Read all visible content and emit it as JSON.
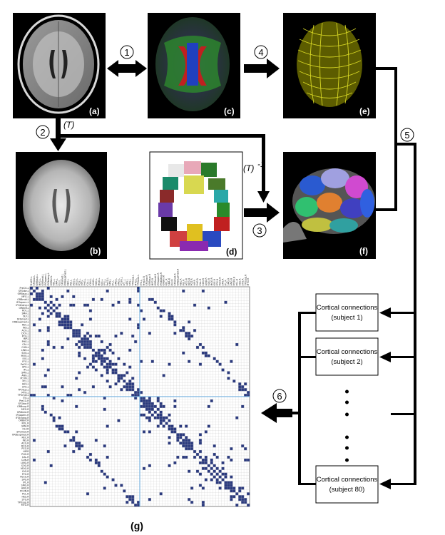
{
  "panels": {
    "a": {
      "label": "(a)"
    },
    "b": {
      "label": "(b)"
    },
    "c": {
      "label": "(c)"
    },
    "d": {
      "label": "(d)"
    },
    "e": {
      "label": "(e)"
    },
    "f": {
      "label": "(f)"
    },
    "g": {
      "label": "(g)"
    }
  },
  "steps": [
    "1",
    "2",
    "3",
    "4",
    "5",
    "6"
  ],
  "transforms": {
    "t": "(T)",
    "t_inv": "(T)",
    "t_inv_exp": "-1"
  },
  "subjects": [
    {
      "line1": "Cortical connections",
      "line2": "(subject 1)"
    },
    {
      "line1": "Cortical connections",
      "line2": "(subject 2)"
    },
    {
      "line1": "Cortical connections",
      "line2": "(subject 80)"
    }
  ],
  "regions": [
    "PreCG.L",
    "SFGdor.L",
    "ORBsup.L",
    "MFG.L",
    "ORBmid.L",
    "IFGoperc.L",
    "IFGtriang.L",
    "ORBinf.L",
    "ROL.L",
    "SMA.L",
    "OLF.L",
    "SFGmed.L",
    "ORBsupmed.L",
    "REC.L",
    "INS.L",
    "ACG.L",
    "DCG.L",
    "PCG.L",
    "HIP.L",
    "PHG.L",
    "CAL.L",
    "CUN.L",
    "LING.L",
    "SOG.L",
    "MOG.L",
    "IOG.L",
    "FFG.L",
    "PoCG.L",
    "SPG.L",
    "IPL.L",
    "SMG.L",
    "ANG.L",
    "PCUN.L",
    "PCL.L",
    "HES.L",
    "STG.L",
    "TPOsup.L",
    "MTG.L",
    "TPOmid.L",
    "ITG.L",
    "PreCG.R",
    "SFGdor.R",
    "ORBsup.R",
    "MFG.R",
    "ORBmid.R",
    "IFGoperc.R",
    "IFGtriang.R",
    "ORBinf.R",
    "ROL.R",
    "SMA.R",
    "OLF.R",
    "SFGmed.R",
    "ORBsupmed.R",
    "REC.R",
    "INS.R",
    "ACG.R",
    "DCG.R",
    "PCG.R",
    "HIP.R",
    "PHG.R",
    "CAL.R",
    "CUN.R",
    "LING.R",
    "SOG.R",
    "MOG.R",
    "IOG.R",
    "FFG.R",
    "PoCG.R",
    "SPG.R",
    "IPL.R",
    "SMG.R",
    "ANG.R",
    "PCUN.R",
    "PCL.R",
    "HES.R",
    "STG.R",
    "TPOsup.R",
    "MTG.R"
  ],
  "matrix_colors": {
    "cell": "#2b3a7e",
    "grid": "#c8c8c8",
    "divider": "#7ab4e0"
  }
}
